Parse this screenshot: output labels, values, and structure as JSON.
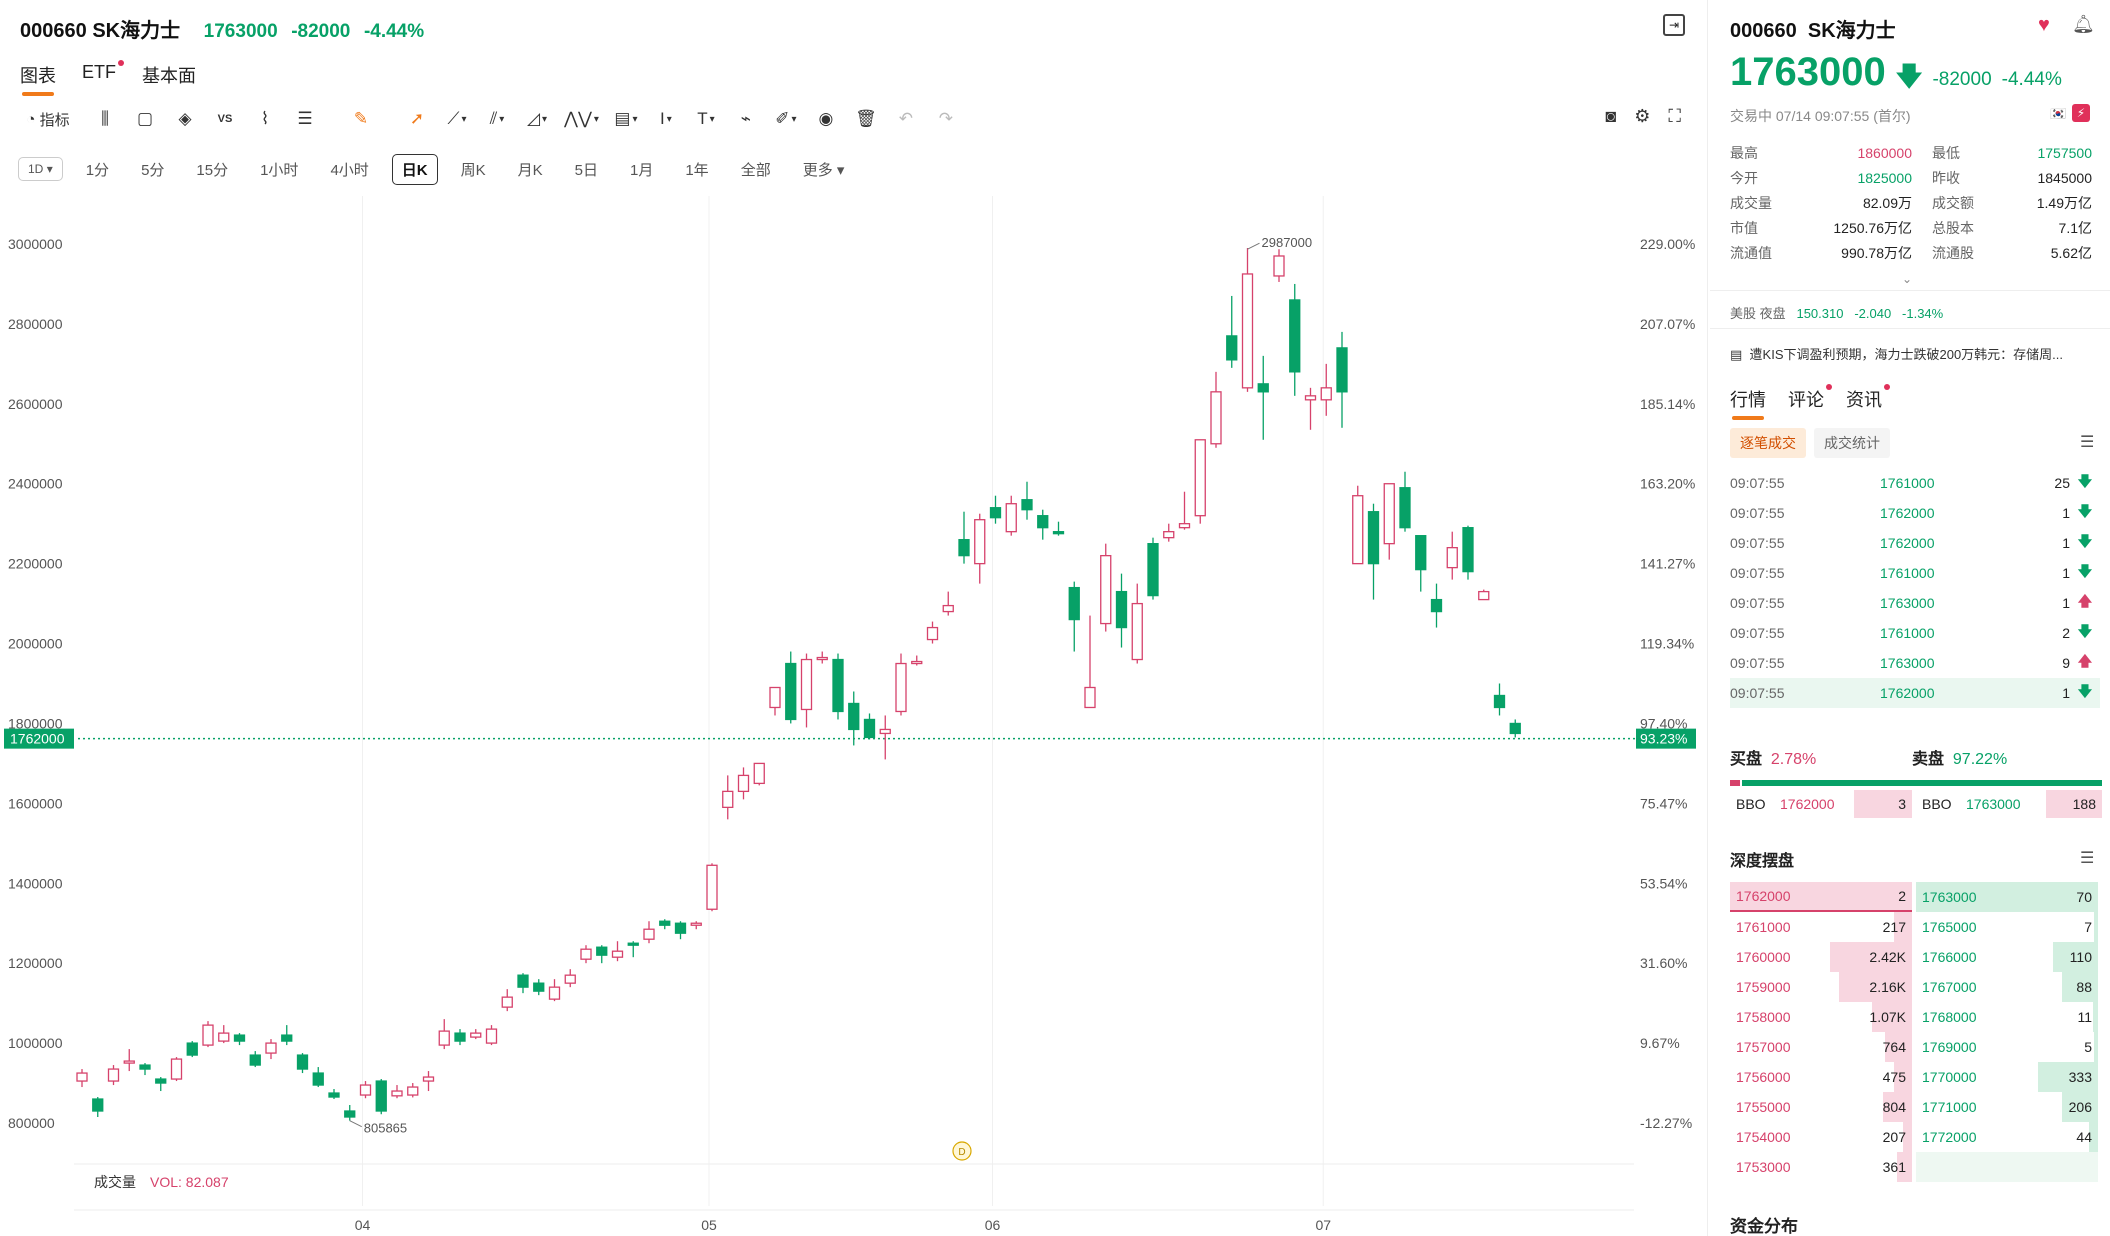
{
  "header": {
    "code": "000660",
    "name": "SK海力士",
    "price": "1763000",
    "change": "-82000",
    "change_pct": "-4.44%"
  },
  "tabs": [
    {
      "label": "图表",
      "active": true,
      "dot": false
    },
    {
      "label": "ETF",
      "active": false,
      "dot": true
    },
    {
      "label": "基本面",
      "active": false,
      "dot": false
    }
  ],
  "toolbar": {
    "indicator_label": "指标",
    "tools": [
      "candle-type-icon",
      "rectangle-icon",
      "layers-icon",
      "vs-icon",
      "compare-chart-icon",
      "align-icon",
      "highlighter-icon",
      "cursor-icon",
      "line-tool-icon",
      "fib-tool-icon",
      "shape-tool-icon",
      "pattern-tool-icon",
      "measure-tool-icon",
      "text-tool-icon",
      "text-label-icon",
      "magnet-icon",
      "brush-icon",
      "eye-icon",
      "trash-icon",
      "undo-icon",
      "redo-icon"
    ]
  },
  "periods": {
    "selector": "1D",
    "items": [
      "1分",
      "5分",
      "15分",
      "1小时",
      "4小时",
      "日K",
      "周K",
      "月K",
      "5日",
      "1月",
      "1年",
      "全部",
      "更多"
    ],
    "active_index": 5
  },
  "chart_data": {
    "type": "candlestick",
    "y_left_ticks": [
      3000000,
      2800000,
      2600000,
      2400000,
      2200000,
      2000000,
      1800000,
      1600000,
      1400000,
      1200000,
      1000000,
      800000
    ],
    "y_left_tick_labels": [
      "3000000",
      "2800000",
      "2600000",
      "2400000",
      "2200000",
      "2000000",
      "1800000",
      "1600000",
      "1400000",
      "1200000",
      "1000000",
      "800000"
    ],
    "y_right_ticks": [
      "229.00%",
      "207.07%",
      "185.14%",
      "163.20%",
      "141.27%",
      "119.34%",
      "97.40%",
      "75.47%",
      "53.54%",
      "31.60%",
      "9.67%",
      "-12.27%"
    ],
    "ylim": [
      720000,
      3200000
    ],
    "x_labels": [
      {
        "label": "04",
        "index": 18
      },
      {
        "label": "05",
        "index": 40
      },
      {
        "label": "06",
        "index": 58
      },
      {
        "label": "07",
        "index": 79
      }
    ],
    "current_price_left": "1762000",
    "current_price_right": "93.23%",
    "current_price": 1762000,
    "max_label": "2987000",
    "max_index": 74,
    "max_value": 2987000,
    "min_label": "805865",
    "min_index": 17,
    "min_value": 805865,
    "event_marker": "D",
    "event_index": 56,
    "volume_label": "成交量",
    "volume_value": "VOL: 82.087",
    "candles": [
      [
        905000,
        925000,
        890000,
        935000
      ],
      [
        860000,
        830000,
        815000,
        865000
      ],
      [
        905000,
        935000,
        895000,
        945000
      ],
      [
        950000,
        955000,
        930000,
        985000
      ],
      [
        945000,
        935000,
        920000,
        950000
      ],
      [
        910000,
        900000,
        880000,
        915000
      ],
      [
        910000,
        960000,
        905000,
        965000
      ],
      [
        1000000,
        970000,
        965000,
        1005000
      ],
      [
        995000,
        1045000,
        990000,
        1055000
      ],
      [
        1005000,
        1025000,
        1000000,
        1045000
      ],
      [
        1020000,
        1005000,
        995000,
        1025000
      ],
      [
        970000,
        945000,
        940000,
        980000
      ],
      [
        975000,
        1000000,
        960000,
        1010000
      ],
      [
        1020000,
        1005000,
        995000,
        1045000
      ],
      [
        970000,
        935000,
        925000,
        975000
      ],
      [
        925000,
        895000,
        890000,
        940000
      ],
      [
        875000,
        865000,
        860000,
        885000
      ],
      [
        830000,
        815000,
        806000,
        845000
      ],
      [
        870000,
        895000,
        862000,
        905000
      ],
      [
        905000,
        830000,
        822000,
        910000
      ],
      [
        868000,
        880000,
        862000,
        895000
      ],
      [
        870000,
        890000,
        864000,
        900000
      ],
      [
        905000,
        915000,
        880000,
        930000
      ],
      [
        995000,
        1030000,
        985000,
        1060000
      ],
      [
        1025000,
        1005000,
        995000,
        1035000
      ],
      [
        1015000,
        1025000,
        1010000,
        1035000
      ],
      [
        1000000,
        1035000,
        995000,
        1045000
      ],
      [
        1090000,
        1115000,
        1080000,
        1135000
      ],
      [
        1170000,
        1140000,
        1125000,
        1175000
      ],
      [
        1150000,
        1130000,
        1120000,
        1160000
      ],
      [
        1110000,
        1140000,
        1105000,
        1160000
      ],
      [
        1150000,
        1170000,
        1140000,
        1185000
      ],
      [
        1210000,
        1235000,
        1200000,
        1245000
      ],
      [
        1240000,
        1220000,
        1200000,
        1245000
      ],
      [
        1215000,
        1230000,
        1205000,
        1255000
      ],
      [
        1250000,
        1245000,
        1215000,
        1255000
      ],
      [
        1260000,
        1285000,
        1250000,
        1305000
      ],
      [
        1305000,
        1295000,
        1285000,
        1310000
      ],
      [
        1300000,
        1275000,
        1260000,
        1305000
      ],
      [
        1295000,
        1300000,
        1285000,
        1305000
      ],
      [
        1335000,
        1445000,
        1330000,
        1450000
      ],
      [
        1590000,
        1630000,
        1560000,
        1670000
      ],
      [
        1630000,
        1670000,
        1610000,
        1690000
      ],
      [
        1650000,
        1700000,
        1645000,
        1700000
      ],
      [
        1840000,
        1890000,
        1820000,
        1880000
      ],
      [
        1950000,
        1810000,
        1800000,
        1980000
      ],
      [
        1835000,
        1960000,
        1790000,
        1975000
      ],
      [
        1960000,
        1965000,
        1950000,
        1980000
      ],
      [
        1960000,
        1830000,
        1810000,
        1975000
      ],
      [
        1850000,
        1785000,
        1745000,
        1880000
      ],
      [
        1810000,
        1765000,
        1760000,
        1825000
      ],
      [
        1775000,
        1785000,
        1710000,
        1820000
      ],
      [
        1830000,
        1950000,
        1820000,
        1975000
      ],
      [
        1950000,
        1955000,
        1945000,
        1970000
      ],
      [
        2010000,
        2040000,
        2000000,
        2055000
      ],
      [
        2080000,
        2095000,
        2070000,
        2130000
      ],
      [
        2260000,
        2220000,
        2200000,
        2330000
      ],
      [
        2200000,
        2310000,
        2150000,
        2325000
      ],
      [
        2340000,
        2315000,
        2300000,
        2370000
      ],
      [
        2280000,
        2350000,
        2270000,
        2370000
      ],
      [
        2360000,
        2335000,
        2310000,
        2405000
      ],
      [
        2320000,
        2290000,
        2260000,
        2335000
      ],
      [
        2280000,
        2275000,
        2270000,
        2305000
      ],
      [
        2140000,
        2060000,
        1980000,
        2155000
      ],
      [
        1840000,
        1890000,
        1840000,
        2070000
      ],
      [
        2050000,
        2220000,
        2030000,
        2250000
      ],
      [
        2130000,
        2040000,
        1990000,
        2175000
      ],
      [
        1960000,
        2100000,
        1950000,
        2150000
      ],
      [
        2250000,
        2120000,
        2110000,
        2265000
      ],
      [
        2265000,
        2280000,
        2255000,
        2300000
      ],
      [
        2290000,
        2300000,
        2285000,
        2380000
      ],
      [
        2320000,
        2510000,
        2300000,
        2510000
      ],
      [
        2500000,
        2630000,
        2490000,
        2680000
      ],
      [
        2770000,
        2710000,
        2690000,
        2870000
      ],
      [
        2640000,
        2925000,
        2630000,
        2990000
      ],
      [
        2650000,
        2630000,
        2510000,
        2720000
      ],
      [
        2920000,
        2970000,
        2905000,
        2987000
      ],
      [
        2860000,
        2680000,
        2620000,
        2900000
      ],
      [
        2610000,
        2620000,
        2535000,
        2640000
      ],
      [
        2610000,
        2640000,
        2570000,
        2700000
      ],
      [
        2740000,
        2630000,
        2540000,
        2780000
      ],
      [
        2200000,
        2370000,
        2200000,
        2395000
      ],
      [
        2330000,
        2200000,
        2110000,
        2350000
      ],
      [
        2250000,
        2400000,
        2210000,
        2400000
      ],
      [
        2390000,
        2290000,
        2280000,
        2430000
      ],
      [
        2270000,
        2185000,
        2130000,
        2270000
      ],
      [
        2110000,
        2080000,
        2040000,
        2150000
      ],
      [
        2190000,
        2240000,
        2160000,
        2280000
      ],
      [
        2290000,
        2180000,
        2160000,
        2295000
      ],
      [
        2110000,
        2130000,
        2110000,
        2135000
      ],
      [
        1870000,
        1840000,
        1820000,
        1900000
      ],
      [
        1800000,
        1775000,
        1765000,
        1810000
      ]
    ]
  },
  "right_panel": {
    "code": "000660",
    "name": "SK海力士",
    "price": "1763000",
    "change": "-82000",
    "change_pct": "-4.44%",
    "status": "交易中 07/14 09:07:55 (首尔)",
    "stats": [
      {
        "l1": "最高",
        "v1": "1860000",
        "c1": "up",
        "l2": "最低",
        "v2": "1757500",
        "c2": "down"
      },
      {
        "l1": "今开",
        "v1": "1825000",
        "c1": "down",
        "l2": "昨收",
        "v2": "1845000",
        "c2": ""
      },
      {
        "l1": "成交量",
        "v1": "82.09万",
        "c1": "",
        "l2": "成交额",
        "v2": "1.49万亿",
        "c2": ""
      },
      {
        "l1": "市值",
        "v1": "1250.76万亿",
        "c1": "",
        "l2": "总股本",
        "v2": "7.1亿",
        "c2": ""
      },
      {
        "l1": "流通值",
        "v1": "990.78万亿",
        "c1": "",
        "l2": "流通股",
        "v2": "5.62亿",
        "c2": ""
      }
    ],
    "night_label": "美股 夜盘",
    "night_price": "150.310",
    "night_change": "-2.040",
    "night_pct": "-1.34%",
    "news": "遭KIS下调盈利预期，海力士跌破200万韩元：存储周...",
    "tabs": [
      "行情",
      "评论",
      "资讯"
    ],
    "subtabs": [
      "逐笔成交",
      "成交统计"
    ],
    "ticks": [
      {
        "time": "09:07:55",
        "price": "1761000",
        "vol": "25",
        "dir": "down"
      },
      {
        "time": "09:07:55",
        "price": "1762000",
        "vol": "1",
        "dir": "down"
      },
      {
        "time": "09:07:55",
        "price": "1762000",
        "vol": "1",
        "dir": "down"
      },
      {
        "time": "09:07:55",
        "price": "1761000",
        "vol": "1",
        "dir": "down"
      },
      {
        "time": "09:07:55",
        "price": "1763000",
        "vol": "1",
        "dir": "up"
      },
      {
        "time": "09:07:55",
        "price": "1761000",
        "vol": "2",
        "dir": "down"
      },
      {
        "time": "09:07:55",
        "price": "1763000",
        "vol": "9",
        "dir": "up"
      },
      {
        "time": "09:07:55",
        "price": "1762000",
        "vol": "1",
        "dir": "down"
      }
    ],
    "buy_label": "买盘",
    "buy_pct": "2.78%",
    "buy_fraction": 0.0278,
    "sell_label": "卖盘",
    "sell_pct": "97.22%",
    "bbo_bid_label": "BBO",
    "bbo_bid_price": "1762000",
    "bbo_bid_vol": "3",
    "bbo_ask_label": "BBO",
    "bbo_ask_price": "1763000",
    "bbo_ask_vol": "188",
    "depth_title": "深度摆盘",
    "bids": [
      {
        "price": "1762000",
        "vol": "2",
        "frac": 1.0
      },
      {
        "price": "1761000",
        "vol": "217",
        "frac": 0.1
      },
      {
        "price": "1760000",
        "vol": "2.42K",
        "frac": 0.45
      },
      {
        "price": "1759000",
        "vol": "2.16K",
        "frac": 0.4
      },
      {
        "price": "1758000",
        "vol": "1.07K",
        "frac": 0.22
      },
      {
        "price": "1757000",
        "vol": "764",
        "frac": 0.15
      },
      {
        "price": "1756000",
        "vol": "475",
        "frac": 0.1
      },
      {
        "price": "1755000",
        "vol": "804",
        "frac": 0.16
      },
      {
        "price": "1754000",
        "vol": "207",
        "frac": 0.05
      },
      {
        "price": "1753000",
        "vol": "361",
        "frac": 0.08
      }
    ],
    "asks": [
      {
        "price": "1763000",
        "vol": "70",
        "frac": 1.0
      },
      {
        "price": "1765000",
        "vol": "7",
        "frac": 0.02
      },
      {
        "price": "1766000",
        "vol": "110",
        "frac": 0.25
      },
      {
        "price": "1767000",
        "vol": "88",
        "frac": 0.2
      },
      {
        "price": "1768000",
        "vol": "11",
        "frac": 0.03
      },
      {
        "price": "1769000",
        "vol": "5",
        "frac": 0.01
      },
      {
        "price": "1770000",
        "vol": "333",
        "frac": 0.33
      },
      {
        "price": "1771000",
        "vol": "206",
        "frac": 0.2
      },
      {
        "price": "1772000",
        "vol": "44",
        "frac": 0.05
      }
    ],
    "fund_title": "资金分布"
  },
  "colors": {
    "up": "#d6426b",
    "down": "#07a167",
    "accent": "#f07a1a"
  }
}
